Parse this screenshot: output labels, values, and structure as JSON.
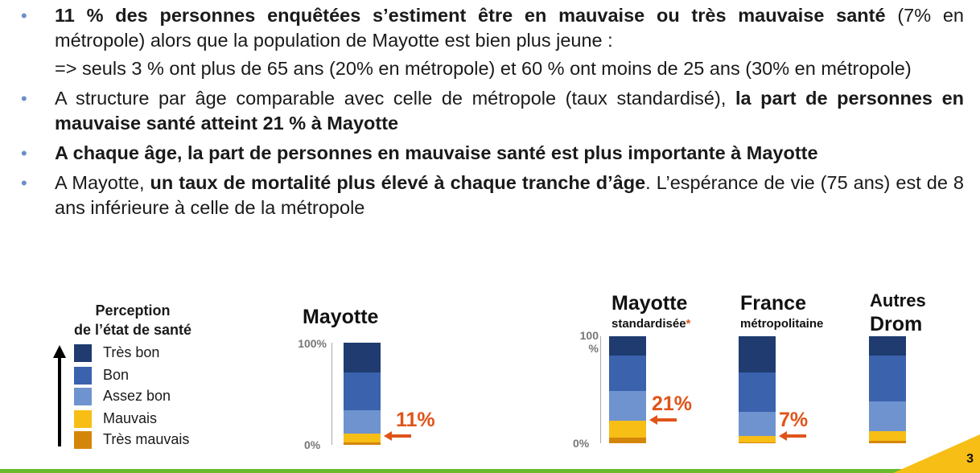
{
  "bullets": [
    {
      "bold": "11 % des personnes enquêtées s’estiment être en mauvaise ou très mauvaise santé",
      "rest": " (7% en métropole) alors que la population de Mayotte est bien plus jeune :",
      "sub": "=> seuls 3 % ont plus de 65 ans (20% en métropole) et 60 % ont moins de 25 ans (30% en métropole)"
    },
    {
      "text": "A structure par âge comparable avec  celle de métropole (taux standardisé), ",
      "bold": "la part de personnes en mauvaise santé atteint 21 % à Mayotte"
    },
    {
      "bold": "A chaque âge, la part de personnes en mauvaise santé est plus importante à Mayotte"
    },
    {
      "text": "A Mayotte, ",
      "bold": "un taux de mortalité plus élevé à chaque tranche d’âge",
      "rest": ". L’espérance de vie (75 ans) est de 8 ans inférieure à celle de la métropole"
    }
  ],
  "legend": {
    "title_line1": "Perception",
    "title_line2": "de l’état de santé",
    "items": [
      {
        "label": "Très bon",
        "color": "#1f3b6f"
      },
      {
        "label": "Bon",
        "color": "#3a62ad"
      },
      {
        "label": "Assez bon",
        "color": "#6f93cf"
      },
      {
        "label": "Mauvais",
        "color": "#f7be16"
      },
      {
        "label": "Très mauvais",
        "color": "#d4860b"
      }
    ]
  },
  "chart_data": [
    {
      "type": "bar",
      "title": "Mayotte",
      "subtitle": "",
      "ylim": [
        0,
        100
      ],
      "tick_top": "100%",
      "tick_bottom": "0%",
      "series": [
        {
          "name": "Très mauvais",
          "value": 2
        },
        {
          "name": "Mauvais",
          "value": 9
        },
        {
          "name": "Assez bon",
          "value": 23
        },
        {
          "name": "Bon",
          "value": 37
        },
        {
          "name": "Très bon",
          "value": 29
        }
      ],
      "annotation": "11%"
    },
    {
      "type": "bar",
      "title": "Mayotte",
      "subtitle": "standardisée",
      "subtitle_mark": "*",
      "ylim": [
        0,
        100
      ],
      "tick_top": "100\n%",
      "tick_bottom": "0%",
      "series": [
        {
          "name": "Très mauvais",
          "value": 5
        },
        {
          "name": "Mauvais",
          "value": 16
        },
        {
          "name": "Assez bon",
          "value": 28
        },
        {
          "name": "Bon",
          "value": 33
        },
        {
          "name": "Très bon",
          "value": 18
        }
      ],
      "annotation": "21%"
    },
    {
      "type": "bar",
      "title": "France",
      "subtitle": "métropolitaine",
      "ylim": [
        0,
        100
      ],
      "series": [
        {
          "name": "Très mauvais",
          "value": 1
        },
        {
          "name": "Mauvais",
          "value": 6
        },
        {
          "name": "Assez bon",
          "value": 22
        },
        {
          "name": "Bon",
          "value": 37
        },
        {
          "name": "Très bon",
          "value": 34
        }
      ],
      "annotation": "7%"
    },
    {
      "type": "bar",
      "title_line1": "Autres",
      "title_line2": "Drom",
      "ylim": [
        0,
        100
      ],
      "series": [
        {
          "name": "Très mauvais",
          "value": 2
        },
        {
          "name": "Mauvais",
          "value": 9
        },
        {
          "name": "Assez bon",
          "value": 28
        },
        {
          "name": "Bon",
          "value": 43
        },
        {
          "name": "Très bon",
          "value": 18
        }
      ]
    }
  ],
  "page_number": "3",
  "colors": {
    "accent": "#e0541a",
    "footer": "#6aba2c",
    "bullet": "#6a8ec8"
  }
}
